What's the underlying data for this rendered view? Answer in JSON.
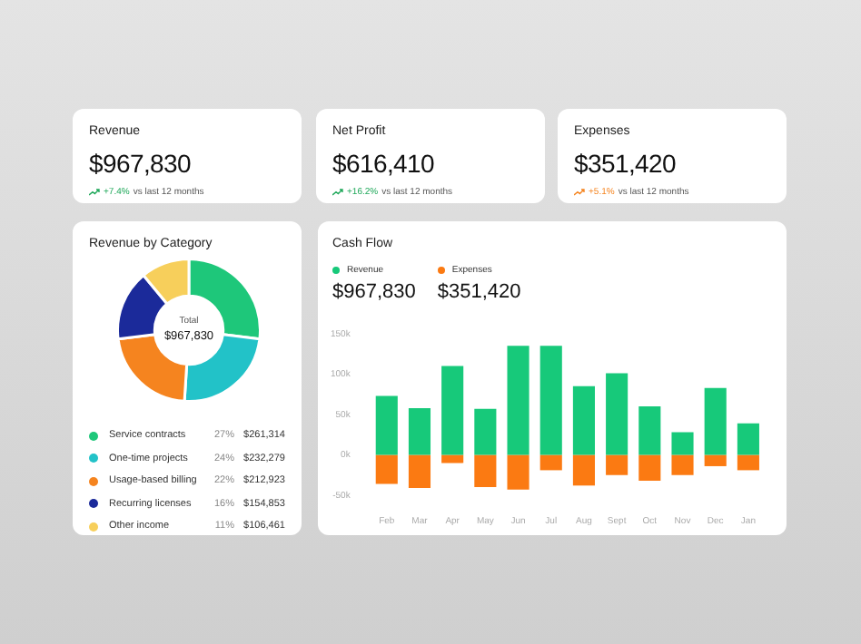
{
  "chart_data": [
    {
      "type": "other",
      "title": "Revenue",
      "subtitle": "$967,830",
      "annotations": [
        "+7.4%",
        "vs last 12 months"
      ],
      "color": "#1fa85a"
    },
    {
      "type": "other",
      "title": "Net Profit",
      "subtitle": "$616,410",
      "annotations": [
        "+16.2%",
        "vs last 12 months"
      ],
      "color": "#1fa85a"
    },
    {
      "type": "other",
      "title": "Expenses",
      "subtitle": "$351,420",
      "annotations": [
        "+5.1%",
        "vs last 12 months"
      ],
      "color": "#f5841f"
    },
    {
      "type": "donut",
      "title": "Revenue by Category",
      "categories": [
        "Service contracts",
        "One-time projects",
        "Usage-based billing",
        "Recurring licenses",
        "Other income"
      ],
      "values": [
        261314,
        232279,
        212923,
        154853,
        106461
      ],
      "colors": [
        "#1ec77a",
        "#22c2c8",
        "#f5841f",
        "#1b2a9a",
        "#f7cf5b"
      ],
      "value_labels": [
        "27% $261,314",
        "24% $232,279",
        "22% $212,923",
        "16% $154,853",
        "11% $106,461"
      ],
      "annotations": [
        "Total",
        "$967,830"
      ],
      "legend": "bottom"
    },
    {
      "type": "bar",
      "title": "Cash Flow",
      "stacked": true,
      "legend": "top left",
      "categories": [
        "Feb",
        "Mar",
        "Apr",
        "May",
        "Jun",
        "Jul",
        "Aug",
        "Sept",
        "Oct",
        "Nov",
        "Dec",
        "Jan"
      ],
      "series": [
        {
          "name": "Revenue",
          "color": "#17c97a",
          "values": [
            73000,
            58000,
            110000,
            57000,
            135000,
            135000,
            85000,
            101000,
            60000,
            28000,
            83000,
            39000
          ]
        },
        {
          "name": "Expenses",
          "color": "#fb7a12",
          "values": [
            -36000,
            -41000,
            -10000,
            -40000,
            -43000,
            -19000,
            -38000,
            -25000,
            -32000,
            -25000,
            -14000,
            -19000
          ]
        }
      ],
      "annotations": [
        "$967,830",
        "$351,420"
      ],
      "ylim": [
        -50000,
        150000
      ],
      "yticks": [
        {
          "value": -50000,
          "label": "-50k"
        },
        {
          "value": 0,
          "label": "0k"
        },
        {
          "value": 50000,
          "label": "50k"
        },
        {
          "value": 100000,
          "label": "100k"
        },
        {
          "value": 150000,
          "label": "150k"
        }
      ]
    }
  ]
}
